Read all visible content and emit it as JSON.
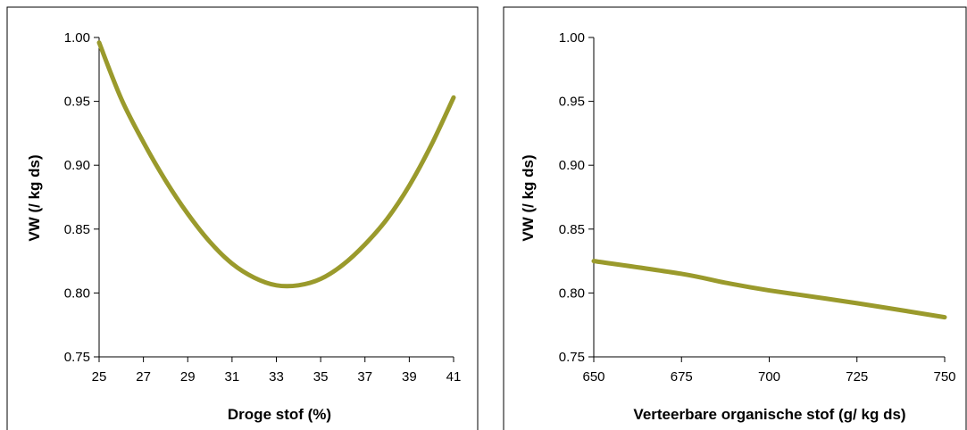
{
  "chart_data": [
    {
      "type": "line",
      "title": "",
      "xlabel": "Droge stof (%)",
      "ylabel": "VW (/ kg ds)",
      "xlim": [
        25,
        41
      ],
      "ylim": [
        0.75,
        1.0
      ],
      "xticks": [
        25,
        27,
        29,
        31,
        33,
        35,
        37,
        39,
        41
      ],
      "yticks": [
        0.75,
        0.8,
        0.85,
        0.9,
        0.95,
        1.0
      ],
      "ytick_labels": [
        "0.75",
        "0.80",
        "0.85",
        "0.90",
        "0.95",
        "1.00"
      ],
      "xtick_labels": [
        "25",
        "27",
        "29",
        "31",
        "33",
        "35",
        "37",
        "39",
        "41"
      ],
      "grid": false,
      "series": [
        {
          "color": "#9a9a2c",
          "x": [
            25,
            26,
            27,
            28,
            29,
            30,
            31,
            32,
            33,
            34,
            35,
            36,
            37,
            38,
            39,
            40,
            41
          ],
          "y": [
            0.996,
            0.952,
            0.918,
            0.888,
            0.862,
            0.84,
            0.823,
            0.812,
            0.806,
            0.806,
            0.811,
            0.822,
            0.838,
            0.858,
            0.884,
            0.916,
            0.953
          ]
        }
      ]
    },
    {
      "type": "line",
      "title": "",
      "xlabel": "Verteerbare organische stof (g/ kg ds)",
      "ylabel": "VW (/ kg ds)",
      "xlim": [
        650,
        750
      ],
      "ylim": [
        0.75,
        1.0
      ],
      "xticks": [
        650,
        675,
        700,
        725,
        750
      ],
      "yticks": [
        0.75,
        0.8,
        0.85,
        0.9,
        0.95,
        1.0
      ],
      "ytick_labels": [
        "0.75",
        "0.80",
        "0.85",
        "0.90",
        "0.95",
        "1.00"
      ],
      "xtick_labels": [
        "650",
        "675",
        "700",
        "725",
        "750"
      ],
      "grid": false,
      "series": [
        {
          "color": "#9a9a2c",
          "x": [
            650,
            675,
            687.5,
            700,
            725,
            750
          ],
          "y": [
            0.825,
            0.815,
            0.808,
            0.802,
            0.792,
            0.781
          ]
        }
      ]
    }
  ]
}
